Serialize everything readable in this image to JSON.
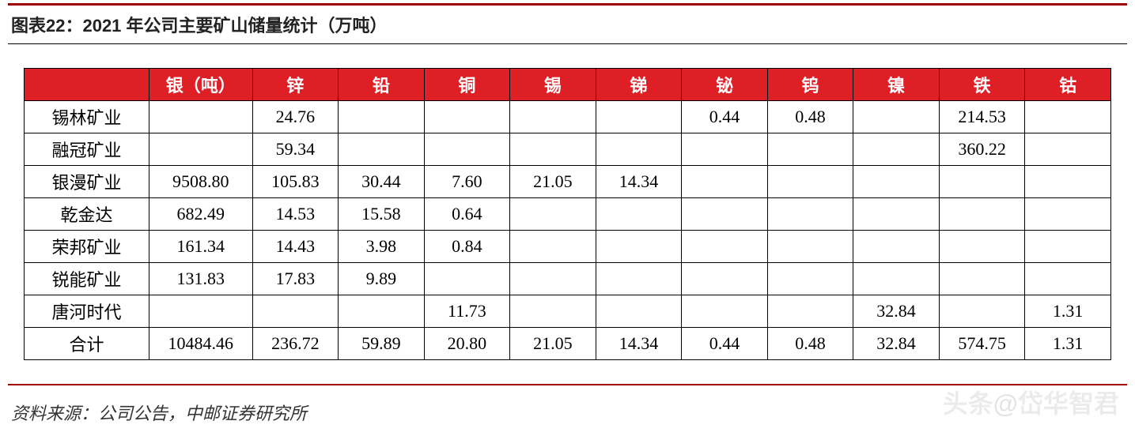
{
  "title": "图表22：2021 年公司主要矿山储量统计（万吨）",
  "columns": [
    "",
    "银（吨）",
    "锌",
    "铅",
    "铜",
    "锡",
    "锑",
    "铋",
    "钨",
    "镍",
    "铁",
    "钴"
  ],
  "rows": [
    {
      "label": "锡林矿业",
      "cells": [
        "",
        "24.76",
        "",
        "",
        "",
        "",
        "0.44",
        "0.48",
        "",
        "214.53",
        ""
      ]
    },
    {
      "label": "融冠矿业",
      "cells": [
        "",
        "59.34",
        "",
        "",
        "",
        "",
        "",
        "",
        "",
        "360.22",
        ""
      ]
    },
    {
      "label": "银漫矿业",
      "cells": [
        "9508.80",
        "105.83",
        "30.44",
        "7.60",
        "21.05",
        "14.34",
        "",
        "",
        "",
        "",
        ""
      ]
    },
    {
      "label": "乾金达",
      "cells": [
        "682.49",
        "14.53",
        "15.58",
        "0.64",
        "",
        "",
        "",
        "",
        "",
        "",
        ""
      ]
    },
    {
      "label": "荣邦矿业",
      "cells": [
        "161.34",
        "14.43",
        "3.98",
        "0.84",
        "",
        "",
        "",
        "",
        "",
        "",
        ""
      ]
    },
    {
      "label": "锐能矿业",
      "cells": [
        "131.83",
        "17.83",
        "9.89",
        "",
        "",
        "",
        "",
        "",
        "",
        "",
        ""
      ]
    },
    {
      "label": "唐河时代",
      "cells": [
        "",
        "",
        "",
        "11.73",
        "",
        "",
        "",
        "",
        "32.84",
        "",
        "1.31"
      ]
    },
    {
      "label": "合计",
      "cells": [
        "10484.46",
        "236.72",
        "59.89",
        "20.80",
        "21.05",
        "14.34",
        "0.44",
        "0.48",
        "32.84",
        "574.75",
        "1.31"
      ]
    }
  ],
  "source": "资料来源：公司公告，中邮证券研究所",
  "watermark": "头条@岱华智君",
  "style": {
    "accent_color": "#a00000",
    "header_bg": "#de1f26",
    "header_fg": "#ffffff",
    "border_color": "#000000",
    "title_fontsize": 22,
    "cell_fontsize": 22,
    "source_fontsize": 22
  }
}
